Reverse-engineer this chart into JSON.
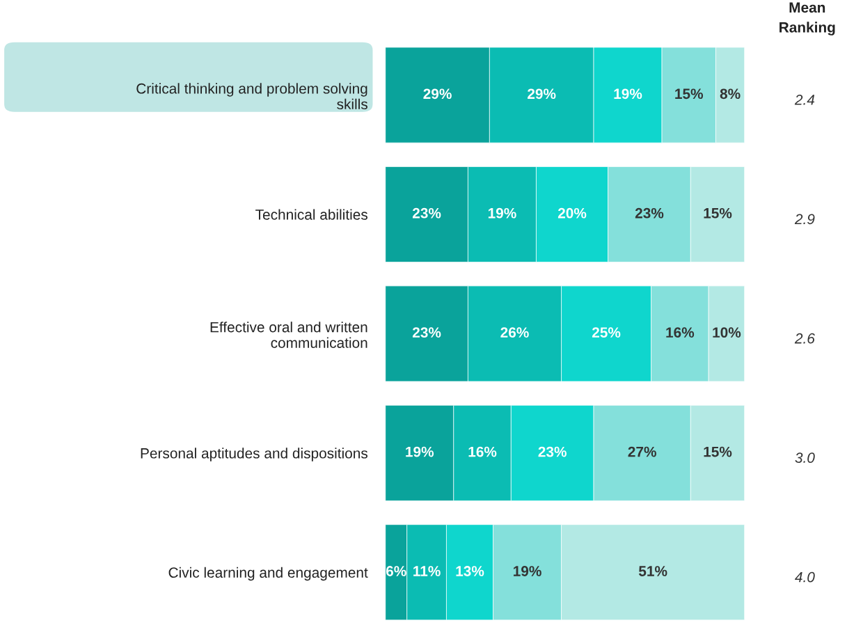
{
  "chart_data": {
    "type": "bar",
    "orientation": "horizontal",
    "stacked": true,
    "tick_labels": "y",
    "grid": false,
    "legend": false,
    "categories": [
      "Critical thinking and problem solving skills",
      "Technical abilities",
      "Effective oral and written communication",
      "Personal aptitudes and dispositions",
      "Civic learning and engagement"
    ],
    "series": [
      {
        "color": "#0aa39b",
        "values": [
          29,
          23,
          23,
          19,
          6
        ],
        "value_labels": [
          "29%",
          "23%",
          "23%",
          "19%",
          "6%"
        ]
      },
      {
        "color": "#0bbcb3",
        "values": [
          29,
          19,
          26,
          16,
          11
        ],
        "value_labels": [
          "29%",
          "19%",
          "26%",
          "16%",
          "11%"
        ]
      },
      {
        "color": "#0fd6cd",
        "values": [
          19,
          20,
          25,
          23,
          13
        ],
        "value_labels": [
          "19%",
          "20%",
          "25%",
          "23%",
          "13%"
        ]
      },
      {
        "color": "#84e0db",
        "values": [
          15,
          23,
          16,
          27,
          19
        ],
        "value_labels": [
          "15%",
          "23%",
          "16%",
          "27%",
          "19%"
        ]
      },
      {
        "color": "#b3e9e4",
        "values": [
          8,
          15,
          10,
          15,
          51
        ],
        "value_labels": [
          "8%",
          "15%",
          "10%",
          "15%",
          "51%"
        ]
      }
    ],
    "annotations": [
      "Mean\nRanking",
      "2.4",
      "2.9",
      "2.6",
      "3.0",
      "4.0"
    ]
  }
}
